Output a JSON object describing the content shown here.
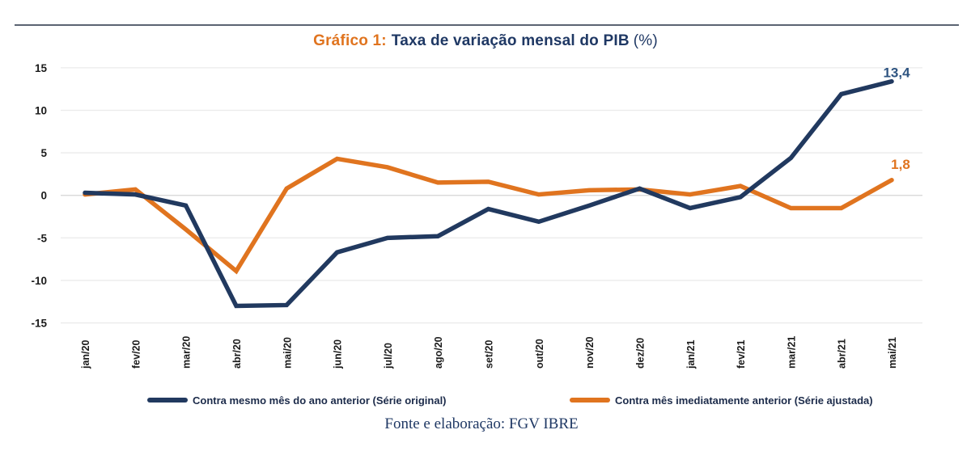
{
  "page": {
    "title_prefix": "Gráfico 1:",
    "title_main": "Taxa de variação mensal do PIB",
    "title_suffix": "(%)",
    "footer": "Fonte e elaboração: FGV IBRE"
  },
  "colors": {
    "title_prefix": "#e0741f",
    "title_main": "#1f3864",
    "top_rule": "#5b6472",
    "grid": "#ebebeb",
    "grid_zero": "#d9d9d9",
    "axis_text": "#1b1b1b",
    "legend_text": "#1c2b4a",
    "footer_text": "#1f3864",
    "series_original": "#21395f",
    "series_ajustada": "#e0741f",
    "end_label_original": "#2e5481",
    "end_label_ajustada": "#e0741f"
  },
  "chart_data": {
    "type": "line",
    "title": "Gráfico 1: Taxa de variação mensal do PIB (%)",
    "xlabel": "",
    "ylabel": "",
    "ylim": [
      -15,
      15
    ],
    "yticks": [
      15,
      10,
      5,
      0,
      -5,
      -10,
      -15
    ],
    "grid": true,
    "legend_position": "bottom",
    "categories": [
      "jan/20",
      "fev/20",
      "mar/20",
      "abr/20",
      "mai/20",
      "jun/20",
      "jul/20",
      "ago/20",
      "set/20",
      "out/20",
      "nov/20",
      "dez/20",
      "jan/21",
      "fev/21",
      "mar/21",
      "abr/21",
      "mai/21"
    ],
    "series": [
      {
        "name": "Contra mesmo mês do ano anterior (Série original)",
        "color": "#21395f",
        "values": [
          0.3,
          0.1,
          -1.2,
          -13.0,
          -12.9,
          -6.7,
          -5.0,
          -4.8,
          -1.6,
          -3.1,
          -1.2,
          0.8,
          -1.5,
          -0.2,
          4.4,
          11.9,
          13.4
        ],
        "end_label": "13,4"
      },
      {
        "name": "Contra mês imediatamente anterior (Série ajustada)",
        "color": "#e0741f",
        "values": [
          0.1,
          0.7,
          -4.0,
          -8.9,
          0.8,
          4.3,
          3.3,
          1.5,
          1.6,
          0.1,
          0.6,
          0.7,
          0.1,
          1.1,
          -1.5,
          -1.5,
          1.8
        ],
        "end_label": "1,8"
      }
    ]
  }
}
